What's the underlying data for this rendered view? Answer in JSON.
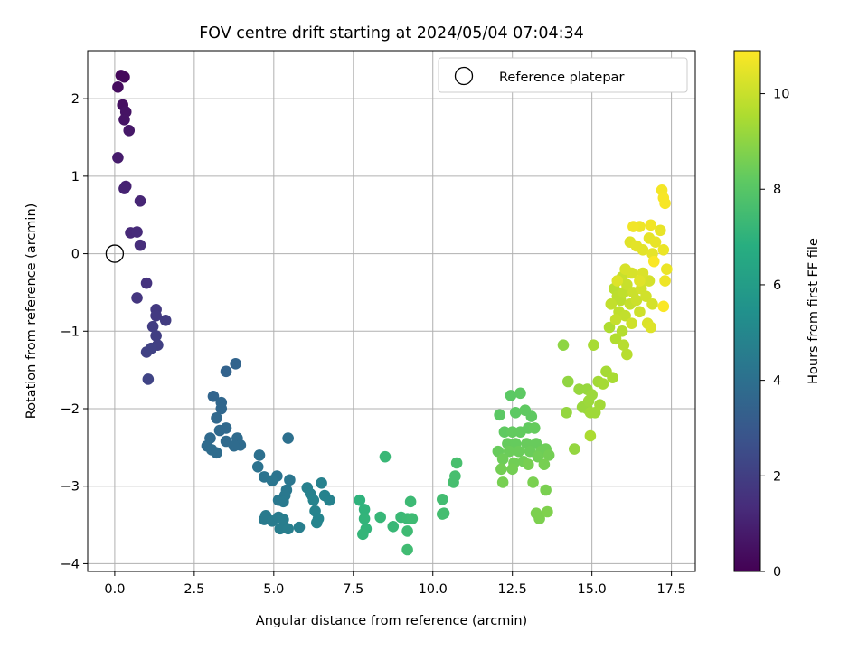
{
  "chart_data": {
    "type": "scatter",
    "title": "FOV centre drift starting at 2024/05/04 07:04:34",
    "xlabel": "Angular distance from reference (arcmin)",
    "ylabel": "Rotation from reference (arcmin)",
    "xlim": [
      -0.85,
      18.25
    ],
    "ylim": [
      -4.1,
      2.62
    ],
    "xticks": [
      0.0,
      2.5,
      5.0,
      7.5,
      10.0,
      12.5,
      15.0,
      17.5
    ],
    "xtick_labels": [
      "0.0",
      "2.5",
      "5.0",
      "7.5",
      "10.0",
      "12.5",
      "15.0",
      "17.5"
    ],
    "yticks": [
      -4,
      -3,
      -2,
      -1,
      0,
      1,
      2
    ],
    "ytick_labels": [
      "−4",
      "−3",
      "−2",
      "−1",
      "0",
      "1",
      "2"
    ],
    "grid": true,
    "legend": {
      "position": "upper right",
      "entries": [
        "Reference platepar"
      ]
    },
    "reference_point": {
      "x": 0.0,
      "y": 0.0
    },
    "colorbar": {
      "label": "Hours from first FF file",
      "colormap": "viridis",
      "range": [
        0,
        10.9
      ],
      "ticks": [
        0,
        2,
        4,
        6,
        8,
        10
      ],
      "tick_labels": [
        "0",
        "2",
        "4",
        "6",
        "8",
        "10"
      ]
    },
    "points": [
      [
        0.2,
        2.3,
        0.2
      ],
      [
        0.3,
        2.28,
        0.25
      ],
      [
        0.1,
        2.15,
        0.35
      ],
      [
        0.25,
        1.92,
        0.45
      ],
      [
        0.35,
        1.83,
        0.55
      ],
      [
        0.3,
        1.73,
        0.6
      ],
      [
        0.45,
        1.59,
        0.7
      ],
      [
        0.1,
        1.24,
        0.85
      ],
      [
        0.35,
        0.87,
        1.0
      ],
      [
        0.3,
        0.84,
        1.05
      ],
      [
        0.8,
        0.68,
        1.15
      ],
      [
        0.5,
        0.27,
        1.25
      ],
      [
        0.7,
        0.28,
        1.3
      ],
      [
        0.8,
        0.11,
        1.4
      ],
      [
        1.0,
        -0.38,
        1.6
      ],
      [
        0.7,
        -0.57,
        1.7
      ],
      [
        1.3,
        -0.72,
        1.8
      ],
      [
        1.3,
        -0.8,
        1.85
      ],
      [
        1.6,
        -0.86,
        1.9
      ],
      [
        1.2,
        -0.94,
        1.95
      ],
      [
        1.3,
        -1.06,
        2.0
      ],
      [
        1.35,
        -1.18,
        2.05
      ],
      [
        1.0,
        -1.27,
        2.1
      ],
      [
        1.15,
        -1.22,
        2.15
      ],
      [
        1.05,
        -1.62,
        2.2
      ],
      [
        3.8,
        -1.42,
        3.5
      ],
      [
        3.5,
        -1.52,
        3.45
      ],
      [
        3.1,
        -1.84,
        3.55
      ],
      [
        3.35,
        -1.92,
        3.6
      ],
      [
        3.35,
        -2.0,
        3.6
      ],
      [
        3.2,
        -2.12,
        3.65
      ],
      [
        3.5,
        -2.25,
        3.7
      ],
      [
        3.3,
        -2.28,
        3.7
      ],
      [
        3.0,
        -2.38,
        3.75
      ],
      [
        3.5,
        -2.42,
        3.75
      ],
      [
        3.85,
        -2.38,
        3.8
      ],
      [
        3.95,
        -2.47,
        3.8
      ],
      [
        3.75,
        -2.48,
        3.8
      ],
      [
        2.9,
        -2.48,
        3.8
      ],
      [
        3.05,
        -2.53,
        3.85
      ],
      [
        3.2,
        -2.57,
        3.85
      ],
      [
        4.55,
        -2.6,
        4.0
      ],
      [
        5.45,
        -2.38,
        4.0
      ],
      [
        4.5,
        -2.75,
        4.1
      ],
      [
        4.7,
        -2.88,
        4.15
      ],
      [
        5.1,
        -2.87,
        4.15
      ],
      [
        4.95,
        -2.93,
        4.2
      ],
      [
        5.5,
        -2.92,
        4.25
      ],
      [
        5.4,
        -3.05,
        4.3
      ],
      [
        5.35,
        -3.12,
        4.35
      ],
      [
        5.15,
        -3.18,
        4.35
      ],
      [
        5.3,
        -3.2,
        4.4
      ],
      [
        4.75,
        -3.38,
        4.45
      ],
      [
        4.7,
        -3.43,
        4.45
      ],
      [
        4.95,
        -3.45,
        4.5
      ],
      [
        5.15,
        -3.4,
        4.5
      ],
      [
        5.3,
        -3.43,
        4.55
      ],
      [
        5.2,
        -3.55,
        4.55
      ],
      [
        5.45,
        -3.55,
        4.6
      ],
      [
        5.8,
        -3.53,
        4.6
      ],
      [
        6.05,
        -3.02,
        4.7
      ],
      [
        6.15,
        -3.1,
        4.75
      ],
      [
        6.5,
        -2.96,
        4.75
      ],
      [
        6.6,
        -3.12,
        4.8
      ],
      [
        6.75,
        -3.18,
        4.8
      ],
      [
        6.25,
        -3.18,
        4.85
      ],
      [
        6.3,
        -3.32,
        4.85
      ],
      [
        6.4,
        -3.42,
        4.9
      ],
      [
        6.35,
        -3.47,
        4.9
      ],
      [
        7.7,
        -3.18,
        7.0
      ],
      [
        7.85,
        -3.3,
        7.05
      ],
      [
        7.85,
        -3.42,
        7.1
      ],
      [
        7.9,
        -3.55,
        7.1
      ],
      [
        7.8,
        -3.62,
        7.15
      ],
      [
        8.35,
        -3.4,
        7.2
      ],
      [
        8.5,
        -2.62,
        7.25
      ],
      [
        8.75,
        -3.52,
        7.25
      ],
      [
        9.0,
        -3.4,
        7.3
      ],
      [
        9.2,
        -3.42,
        7.35
      ],
      [
        9.3,
        -3.2,
        7.35
      ],
      [
        9.35,
        -3.42,
        7.4
      ],
      [
        9.2,
        -3.58,
        7.4
      ],
      [
        9.2,
        -3.82,
        7.45
      ],
      [
        10.3,
        -3.17,
        7.5
      ],
      [
        10.3,
        -3.36,
        7.55
      ],
      [
        10.35,
        -3.35,
        7.55
      ],
      [
        10.65,
        -2.95,
        7.6
      ],
      [
        10.7,
        -2.87,
        7.6
      ],
      [
        10.75,
        -2.7,
        7.65
      ],
      [
        12.1,
        -2.08,
        8.1
      ],
      [
        12.45,
        -1.83,
        8.1
      ],
      [
        12.75,
        -1.8,
        8.15
      ],
      [
        12.6,
        -2.05,
        8.15
      ],
      [
        12.9,
        -2.02,
        8.2
      ],
      [
        13.1,
        -2.1,
        8.2
      ],
      [
        12.25,
        -2.3,
        8.2
      ],
      [
        12.5,
        -2.3,
        8.25
      ],
      [
        12.75,
        -2.3,
        8.25
      ],
      [
        13.0,
        -2.25,
        8.25
      ],
      [
        13.2,
        -2.25,
        8.3
      ],
      [
        12.35,
        -2.45,
        8.3
      ],
      [
        12.6,
        -2.45,
        8.3
      ],
      [
        12.95,
        -2.45,
        8.35
      ],
      [
        13.25,
        -2.45,
        8.35
      ],
      [
        12.05,
        -2.55,
        8.35
      ],
      [
        12.4,
        -2.55,
        8.4
      ],
      [
        12.7,
        -2.55,
        8.4
      ],
      [
        13.05,
        -2.55,
        8.4
      ],
      [
        13.4,
        -2.55,
        8.45
      ],
      [
        13.55,
        -2.52,
        8.45
      ],
      [
        12.2,
        -2.65,
        8.45
      ],
      [
        12.55,
        -2.7,
        8.5
      ],
      [
        12.85,
        -2.68,
        8.5
      ],
      [
        13.3,
        -2.62,
        8.5
      ],
      [
        13.65,
        -2.6,
        8.55
      ],
      [
        12.15,
        -2.78,
        8.55
      ],
      [
        12.5,
        -2.78,
        8.55
      ],
      [
        13.0,
        -2.72,
        8.6
      ],
      [
        13.5,
        -2.72,
        8.6
      ],
      [
        12.2,
        -2.95,
        8.6
      ],
      [
        13.15,
        -2.95,
        8.65
      ],
      [
        13.55,
        -3.05,
        8.65
      ],
      [
        13.25,
        -3.35,
        8.7
      ],
      [
        13.35,
        -3.42,
        8.7
      ],
      [
        13.6,
        -3.33,
        8.75
      ],
      [
        14.1,
        -1.18,
        9.0
      ],
      [
        14.25,
        -1.65,
        9.05
      ],
      [
        14.2,
        -2.05,
        9.1
      ],
      [
        14.45,
        -2.52,
        9.1
      ],
      [
        14.6,
        -1.75,
        9.15
      ],
      [
        14.85,
        -1.75,
        9.15
      ],
      [
        14.7,
        -1.98,
        9.2
      ],
      [
        14.85,
        -2.0,
        9.2
      ],
      [
        15.0,
        -1.82,
        9.25
      ],
      [
        14.9,
        -1.9,
        9.25
      ],
      [
        14.95,
        -2.05,
        9.3
      ],
      [
        15.1,
        -2.05,
        9.3
      ],
      [
        15.25,
        -1.95,
        9.35
      ],
      [
        15.2,
        -1.65,
        9.35
      ],
      [
        15.35,
        -1.68,
        9.4
      ],
      [
        15.45,
        -1.52,
        9.4
      ],
      [
        15.65,
        -1.6,
        9.45
      ],
      [
        15.05,
        -1.18,
        9.45
      ],
      [
        14.95,
        -2.35,
        9.5
      ],
      [
        15.55,
        -0.95,
        9.55
      ],
      [
        15.75,
        -1.1,
        9.6
      ],
      [
        15.95,
        -1.0,
        9.65
      ],
      [
        16.0,
        -1.18,
        9.7
      ],
      [
        16.1,
        -1.3,
        9.7
      ],
      [
        15.7,
        -0.45,
        9.75
      ],
      [
        15.8,
        -0.55,
        9.8
      ],
      [
        15.9,
        -0.6,
        9.8
      ],
      [
        16.0,
        -0.5,
        9.85
      ],
      [
        15.85,
        -0.75,
        9.85
      ],
      [
        16.05,
        -0.8,
        9.9
      ],
      [
        15.6,
        -0.65,
        9.9
      ],
      [
        15.75,
        -0.85,
        9.95
      ],
      [
        16.2,
        -0.65,
        9.95
      ],
      [
        15.95,
        -0.3,
        10.0
      ],
      [
        16.1,
        -0.4,
        10.0
      ],
      [
        16.3,
        -0.5,
        10.05
      ],
      [
        16.4,
        -0.6,
        10.05
      ],
      [
        16.5,
        -0.75,
        10.1
      ],
      [
        16.25,
        -0.9,
        10.1
      ],
      [
        16.55,
        -0.45,
        10.15
      ],
      [
        16.7,
        -0.55,
        10.15
      ],
      [
        16.8,
        -0.35,
        10.2
      ],
      [
        16.9,
        -0.65,
        10.2
      ],
      [
        16.05,
        -0.2,
        10.25
      ],
      [
        16.25,
        -0.25,
        10.25
      ],
      [
        16.6,
        -0.25,
        10.3
      ],
      [
        16.75,
        -0.9,
        10.3
      ],
      [
        16.85,
        -0.95,
        10.35
      ],
      [
        15.8,
        -0.35,
        10.35
      ],
      [
        16.5,
        -0.35,
        10.4
      ],
      [
        16.2,
        0.15,
        10.4
      ],
      [
        16.4,
        0.1,
        10.45
      ],
      [
        16.6,
        0.05,
        10.45
      ],
      [
        16.8,
        0.2,
        10.5
      ],
      [
        16.9,
        0.0,
        10.5
      ],
      [
        17.0,
        0.15,
        10.55
      ],
      [
        17.15,
        0.3,
        10.55
      ],
      [
        17.25,
        0.05,
        10.6
      ],
      [
        17.35,
        -0.2,
        10.6
      ],
      [
        17.3,
        -0.35,
        10.65
      ],
      [
        16.5,
        0.35,
        10.65
      ],
      [
        16.3,
        0.35,
        10.7
      ],
      [
        16.85,
        0.37,
        10.7
      ],
      [
        17.2,
        0.82,
        10.75
      ],
      [
        17.25,
        0.72,
        10.8
      ],
      [
        17.3,
        0.65,
        10.8
      ],
      [
        17.25,
        -0.68,
        10.85
      ],
      [
        16.95,
        -0.1,
        10.85
      ]
    ]
  }
}
